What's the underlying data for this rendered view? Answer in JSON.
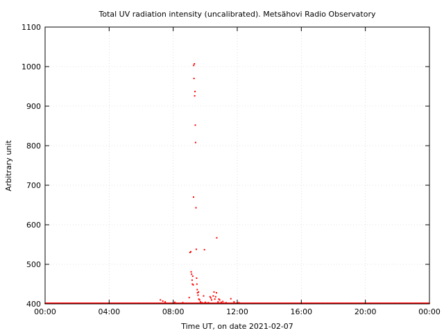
{
  "chart_data": {
    "type": "scatter",
    "title": "Total UV radiation intensity (uncalibrated). Metsähovi Radio Observatory",
    "xlabel": "Time UT, on date 2021-02-07",
    "ylabel": "Arbitrary unit",
    "xlim": [
      0,
      24
    ],
    "ylim": [
      400,
      1100
    ],
    "x_ticks": [
      "00:00",
      "04:00",
      "08:00",
      "12:00",
      "16:00",
      "20:00",
      "00:00"
    ],
    "x_tick_values": [
      0,
      4,
      8,
      12,
      16,
      20,
      24
    ],
    "y_ticks": [
      400,
      500,
      600,
      700,
      800,
      900,
      1000,
      1100
    ],
    "grid": true,
    "marker_color": "#ff0000",
    "baseline": {
      "description_value": 401,
      "x_start": 0,
      "x_end": 24,
      "interval_hours": 0.02
    },
    "series": [
      {
        "points": [
          {
            "x": 7.2,
            "y": 410
          },
          {
            "x": 7.35,
            "y": 407
          },
          {
            "x": 7.5,
            "y": 405
          },
          {
            "x": 8.1,
            "y": 404
          },
          {
            "x": 8.6,
            "y": 403
          },
          {
            "x": 9.0,
            "y": 416
          },
          {
            "x": 9.05,
            "y": 530
          },
          {
            "x": 9.1,
            "y": 532
          },
          {
            "x": 9.12,
            "y": 481
          },
          {
            "x": 9.15,
            "y": 475
          },
          {
            "x": 9.18,
            "y": 460
          },
          {
            "x": 9.2,
            "y": 450
          },
          {
            "x": 9.22,
            "y": 470
          },
          {
            "x": 9.25,
            "y": 448
          },
          {
            "x": 9.27,
            "y": 670
          },
          {
            "x": 9.28,
            "y": 1003
          },
          {
            "x": 9.3,
            "y": 970
          },
          {
            "x": 9.32,
            "y": 1007
          },
          {
            "x": 9.34,
            "y": 926
          },
          {
            "x": 9.36,
            "y": 937
          },
          {
            "x": 9.38,
            "y": 852
          },
          {
            "x": 9.4,
            "y": 808
          },
          {
            "x": 9.42,
            "y": 643
          },
          {
            "x": 9.44,
            "y": 538
          },
          {
            "x": 9.46,
            "y": 465
          },
          {
            "x": 9.48,
            "y": 450
          },
          {
            "x": 9.5,
            "y": 436
          },
          {
            "x": 9.52,
            "y": 428
          },
          {
            "x": 9.55,
            "y": 422
          },
          {
            "x": 9.58,
            "y": 430
          },
          {
            "x": 9.6,
            "y": 412
          },
          {
            "x": 9.65,
            "y": 410
          },
          {
            "x": 9.7,
            "y": 405
          },
          {
            "x": 9.8,
            "y": 403
          },
          {
            "x": 9.9,
            "y": 420
          },
          {
            "x": 9.95,
            "y": 537
          },
          {
            "x": 10.0,
            "y": 404
          },
          {
            "x": 10.1,
            "y": 402
          },
          {
            "x": 10.2,
            "y": 403
          },
          {
            "x": 10.3,
            "y": 418
          },
          {
            "x": 10.35,
            "y": 415
          },
          {
            "x": 10.4,
            "y": 410
          },
          {
            "x": 10.5,
            "y": 420
          },
          {
            "x": 10.55,
            "y": 430
          },
          {
            "x": 10.6,
            "y": 412
          },
          {
            "x": 10.65,
            "y": 418
          },
          {
            "x": 10.7,
            "y": 428
          },
          {
            "x": 10.72,
            "y": 567
          },
          {
            "x": 10.8,
            "y": 405
          },
          {
            "x": 10.85,
            "y": 412
          },
          {
            "x": 10.9,
            "y": 410
          },
          {
            "x": 11.0,
            "y": 404
          },
          {
            "x": 11.1,
            "y": 406
          },
          {
            "x": 11.3,
            "y": 403
          },
          {
            "x": 11.6,
            "y": 413
          },
          {
            "x": 11.8,
            "y": 405
          },
          {
            "x": 12.1,
            "y": 403
          }
        ]
      }
    ]
  }
}
